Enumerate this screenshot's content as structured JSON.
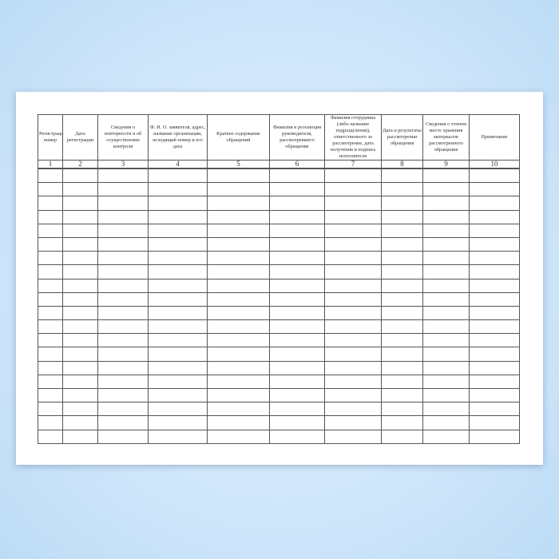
{
  "columns": [
    {
      "header": "Регистрационный номер",
      "number": "1"
    },
    {
      "header": "Дата регистрации",
      "number": "2"
    },
    {
      "header": "Сведения о повторности и об осуществлении контроля",
      "number": "3"
    },
    {
      "header": "Ф. И. О. заявителя, адрес, название организации, исходящий номер и его дата",
      "number": "4"
    },
    {
      "header": "Краткое содержание обращений",
      "number": "5"
    },
    {
      "header": "Фамилия и резолюция руководителя, рассмотревшего обращение",
      "number": "6"
    },
    {
      "header": "Фамилия сотрудника (либо название подразделения), ответственного за рассмотрение, дата получения и подпись исполнителя",
      "number": "7"
    },
    {
      "header": "Дата и результаты рассмотрения обращения",
      "number": "8"
    },
    {
      "header": "Сведения о точном месте хранения материалов рассмотренного обращения",
      "number": "9"
    },
    {
      "header": "Примечание",
      "number": "10"
    }
  ],
  "empty_rows": 20
}
